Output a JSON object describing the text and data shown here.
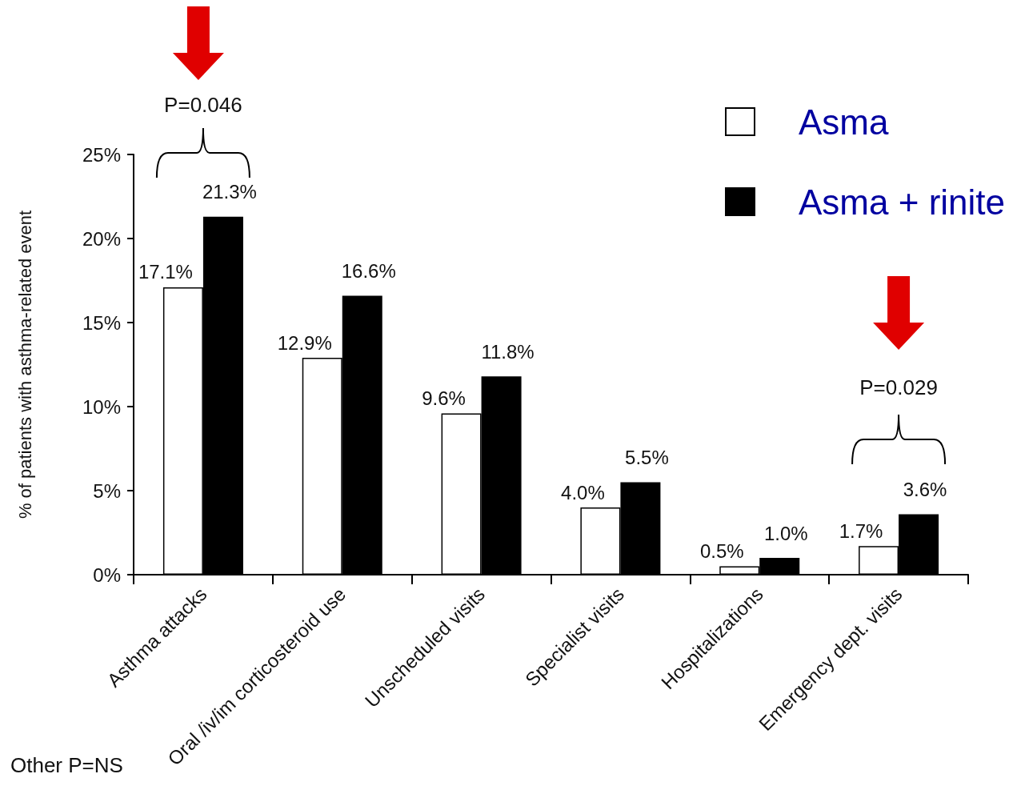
{
  "chart_data": {
    "type": "bar",
    "ylabel": "% of patients with asthma-related event",
    "categories": [
      "Asthma attacks",
      "Oral /iv/im corticosteroid use",
      "Unscheduled visits",
      "Specialist visits",
      "Hospitalizations",
      "Emergency dept. visits"
    ],
    "series": [
      {
        "name": "Asma",
        "color": "#ffffff",
        "values": [
          17.1,
          12.9,
          9.6,
          4.0,
          0.5,
          1.7
        ],
        "value_labels": [
          "17.1%",
          "12.9%",
          "9.6%",
          "4.0%",
          "0.5%",
          "1.7%"
        ]
      },
      {
        "name": "Asma + rinite",
        "color": "#000000",
        "values": [
          21.3,
          16.6,
          11.8,
          5.5,
          1.0,
          3.6
        ],
        "value_labels": [
          "21.3%",
          "16.6%",
          "11.8%",
          "5.5%",
          "1.0%",
          "3.6%"
        ]
      }
    ],
    "ylim": [
      0,
      25
    ],
    "yticks": [
      {
        "value": 0,
        "label": "0%"
      },
      {
        "value": 5,
        "label": "5%"
      },
      {
        "value": 10,
        "label": "10%"
      },
      {
        "value": 15,
        "label": "15%"
      },
      {
        "value": 20,
        "label": "20%"
      },
      {
        "value": 25,
        "label": "25%"
      }
    ],
    "grid": false,
    "legend": "top right",
    "annotations": [
      "P=0.046",
      "P=0.029",
      "Other P=NS"
    ]
  }
}
